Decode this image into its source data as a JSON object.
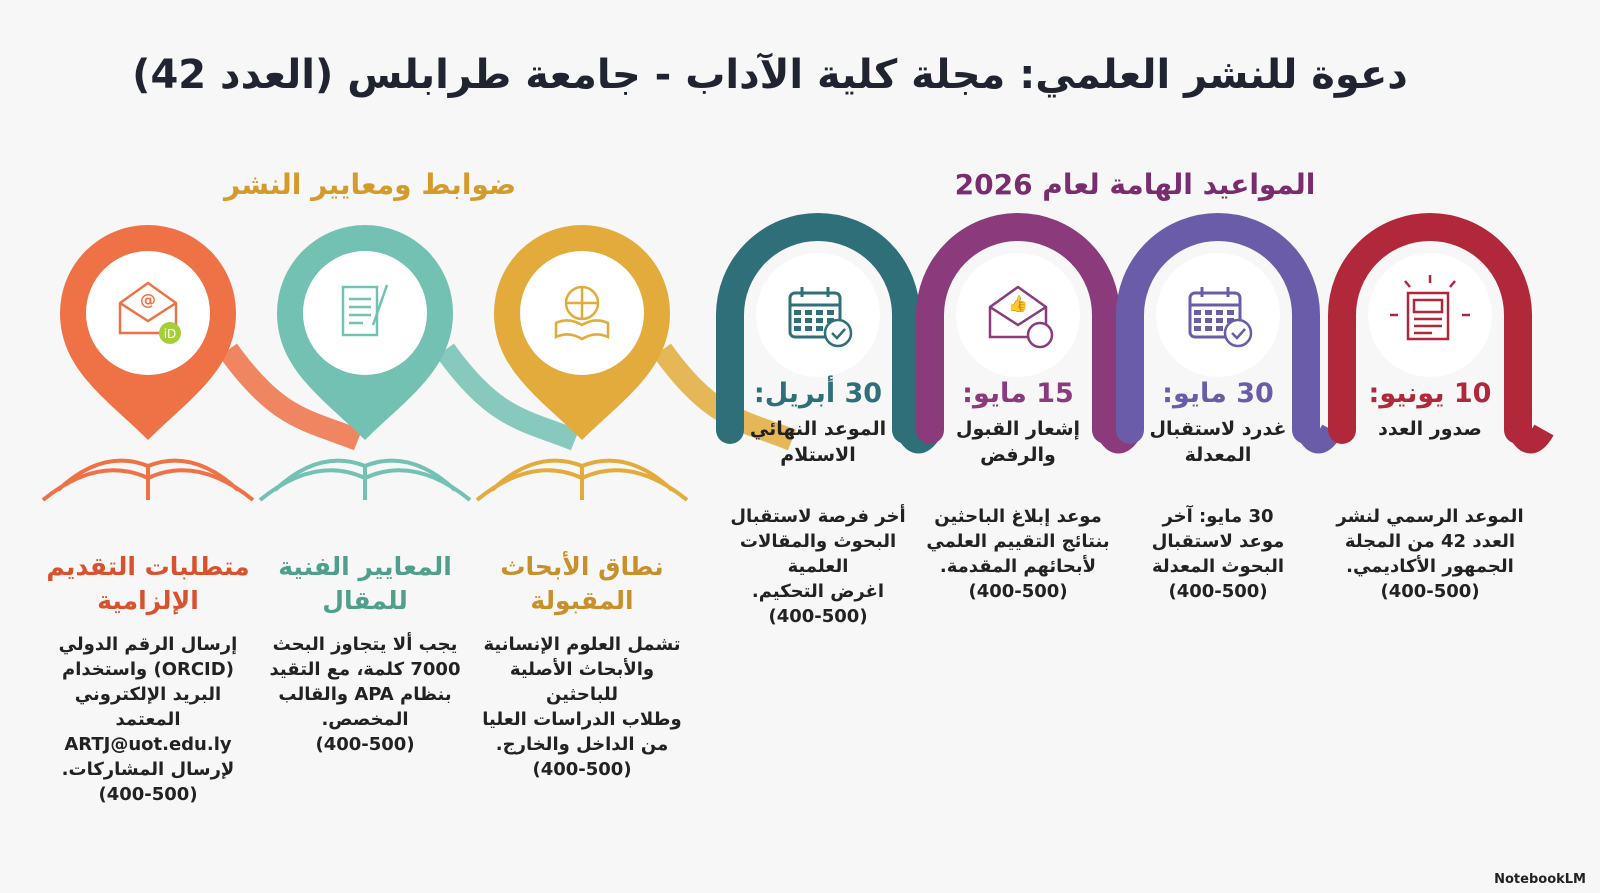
{
  "title": "دعوة للنشر العلمي: مجلة كلية الآداب - جامعة طرابلس (العدد 42)",
  "sections": {
    "standards": {
      "title": "ضوابط ومعايير النشر",
      "color": "#d49a2a"
    },
    "dates": {
      "title": "المواعيد الهامة لعام 2026",
      "color": "#7a2d6e"
    }
  },
  "standards": [
    {
      "icon": "globe-book-icon",
      "color": "#e2ab3b",
      "title": "نطاق الأبحاث المقبولة",
      "title_color": "#c8902a",
      "lines": [
        "تشمل العلوم الإنسانية",
        "والأبحاث الأصلية للباحثين",
        "وطلاب الدراسات العليا",
        "من الداخل والخارج.",
        "(400-500)"
      ]
    },
    {
      "icon": "document-quill-icon",
      "color": "#73c1b2",
      "title": "المعايير الفنية للمقال",
      "title_color": "#4f9f8c",
      "lines": [
        "يجب ألا يتجاوز البحث",
        "7000 كلمة، مع التقيد",
        "بنظام APA والقالب",
        "المخصص.",
        "(400-500)"
      ]
    },
    {
      "icon": "email-orcid-icon",
      "color": "#ee7246",
      "title": "متطلبات التقديم الإلزامية",
      "title_color": "#d8522e",
      "lines": [
        "إرسال الرقم الدولي",
        "(ORCID) واستخدام",
        "البريد الإلكتروني",
        "المعتمد",
        "ARTJ@uot.edu.ly",
        "لإرسال المشاركات.",
        "(400-500)"
      ]
    }
  ],
  "dates": [
    {
      "icon": "calendar-check-icon",
      "color": "#2f6f79",
      "date": "30 أبريل:",
      "subtitle": "الموعد النهائي الاستلام",
      "lines": [
        "أخر فرصة لاستقبال",
        "البحوث والمقالات العلمية",
        "اغرض التحكيم.",
        "(400-500)"
      ]
    },
    {
      "icon": "envelope-thumbs-icon",
      "color": "#8b3a7c",
      "date": "15 مايو:",
      "subtitle": "إشعار القبول والرفض",
      "lines": [
        "موعد إبلاغ الباحثين",
        "بنتائج التقييم العلمي",
        "لأبحائهم المقدمة.",
        "(400-500)"
      ]
    },
    {
      "icon": "calendar-check-icon",
      "color": "#6b5ca9",
      "date": "30 مايو:",
      "subtitle": "غدرد لاستقبال المعدلة",
      "lines": [
        "30 مايو: آخر",
        "موعد لاستقبال",
        "البحوث المعدلة",
        "(400-500)"
      ]
    },
    {
      "icon": "newspaper-icon",
      "color": "#b2283b",
      "date": "10 يونيو:",
      "subtitle": "صدور العدد",
      "lines": [
        "الموعد الرسمي لنشر",
        "العدد 42 من المجلة",
        "الجمهور الأكاديمي.",
        "(400-500)"
      ]
    }
  ],
  "watermark": "NotebookLM"
}
